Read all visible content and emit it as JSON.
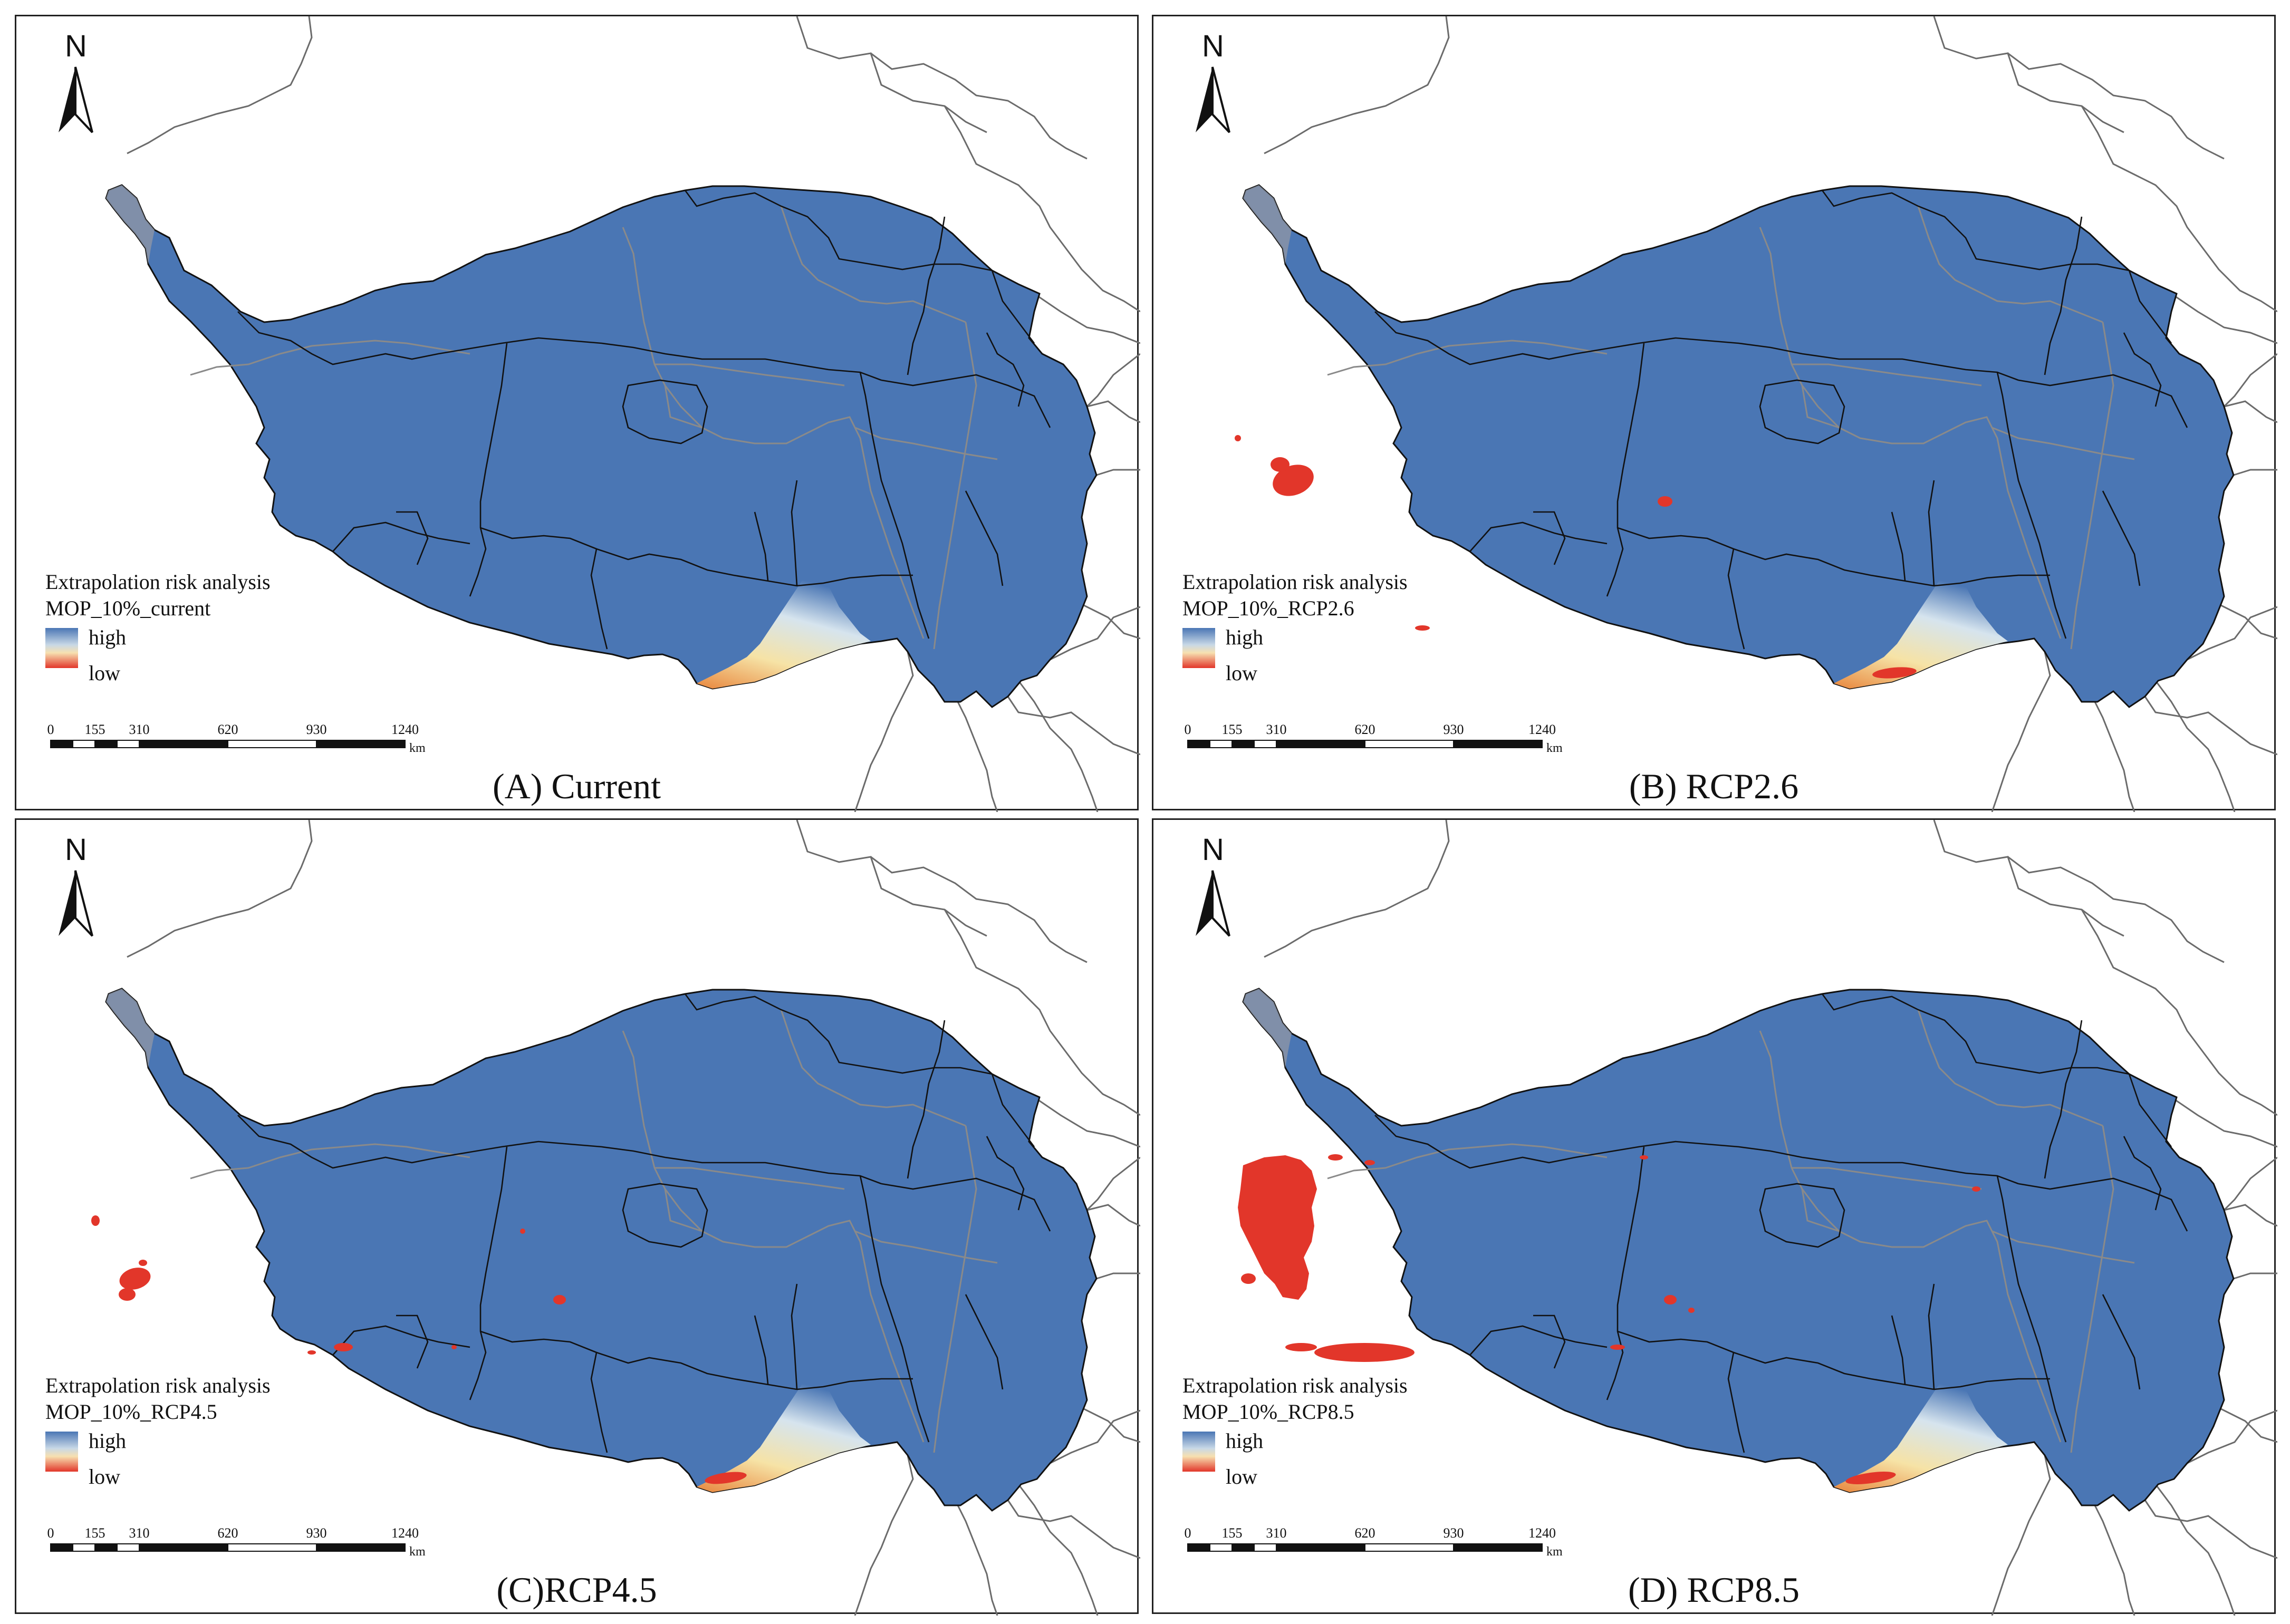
{
  "legend_gradient": [
    "#4a76b4",
    "#c8d8e6",
    "#f7e0b0",
    "#e2362a"
  ],
  "colors": {
    "plateau": "#4a76b4",
    "risk": "#e2362a",
    "boundary_outer": "#111111",
    "boundary_inner": "#8a8a8a",
    "country_lines": "#6b6b6b"
  },
  "north_letter": "N",
  "legend": {
    "high": "high",
    "low": "low"
  },
  "scalebar": {
    "ticks": [
      "0",
      "155",
      "310",
      "620",
      "930",
      "1240"
    ],
    "unit": "km"
  },
  "panels": [
    {
      "caption": "(A) Current",
      "legend_title": "Extrapolation risk analysis",
      "legend_sub": "MOP_10%_current",
      "risk_level": "none"
    },
    {
      "caption": "(B) RCP2.6",
      "legend_title": "Extrapolation risk analysis",
      "legend_sub": "MOP_10%_RCP2.6",
      "risk_level": "low"
    },
    {
      "caption": "(C)RCP4.5",
      "legend_title": "Extrapolation risk analysis",
      "legend_sub": "MOP_10%_RCP4.5",
      "risk_level": "medium"
    },
    {
      "caption": "(D) RCP8.5",
      "legend_title": "Extrapolation risk analysis",
      "legend_sub": "MOP_10%_RCP8.5",
      "risk_level": "high"
    }
  ]
}
